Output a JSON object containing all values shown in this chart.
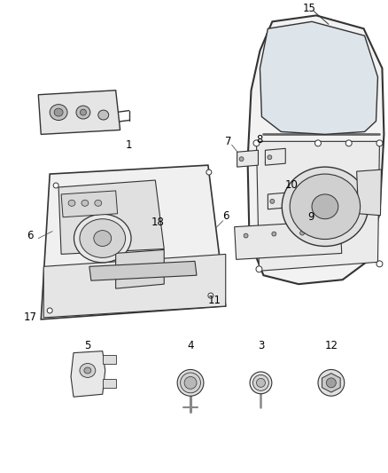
{
  "title": "",
  "background_color": "#ffffff",
  "line_color": "#333333",
  "label_color": "#000000",
  "fig_width": 4.38,
  "fig_height": 5.33,
  "dpi": 100
}
